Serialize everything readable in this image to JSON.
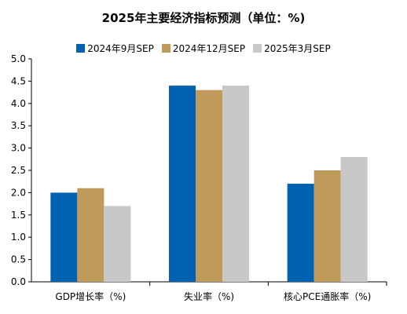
{
  "chart_data": {
    "type": "bar",
    "title": "2025年主要经济指标预测（单位：%)",
    "categories": [
      "GDP增长率（%)",
      "失业率（%)",
      "核心PCE通胀率（%)"
    ],
    "series": [
      {
        "name": "2024年9月SEP",
        "color": "#0062b1",
        "values": [
          2.0,
          4.4,
          2.2
        ]
      },
      {
        "name": "2024年12月SEP",
        "color": "#c09a5a",
        "values": [
          2.1,
          4.3,
          2.5
        ]
      },
      {
        "name": "2025年3月SEP",
        "color": "#c8c8c8",
        "values": [
          1.7,
          4.4,
          2.8
        ]
      }
    ],
    "ylim": [
      0,
      5.0
    ],
    "yticks": [
      "0.0",
      "0.5",
      "1.0",
      "1.5",
      "2.0",
      "2.5",
      "3.0",
      "3.5",
      "4.0",
      "4.5",
      "5.0"
    ],
    "legend_position": "top",
    "grid": false
  }
}
